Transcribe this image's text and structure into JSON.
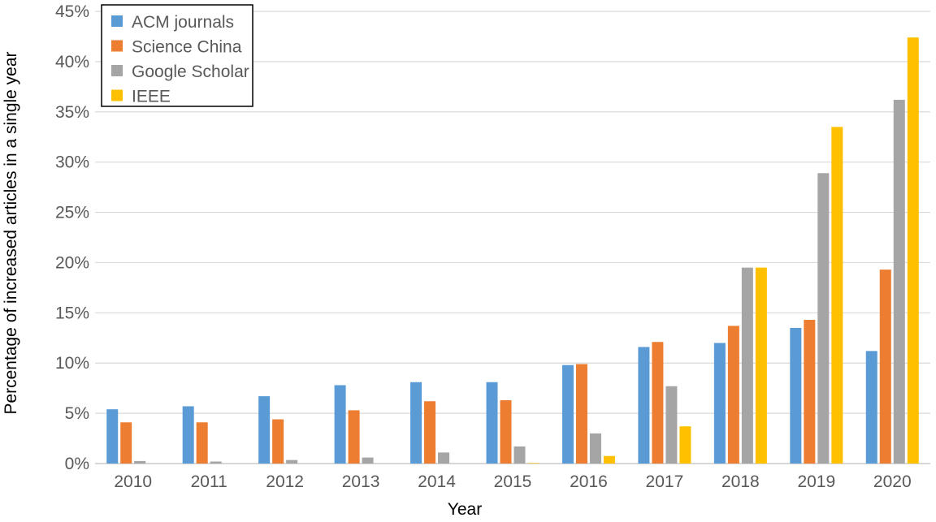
{
  "chart_data": {
    "type": "bar",
    "title": "",
    "xlabel": "Year",
    "ylabel": "Percentage of increased articles in a single year",
    "categories": [
      "2010",
      "2011",
      "2012",
      "2013",
      "2014",
      "2015",
      "2016",
      "2017",
      "2018",
      "2019",
      "2020"
    ],
    "ylim": [
      0,
      45
    ],
    "yticks": [
      0,
      5,
      10,
      15,
      20,
      25,
      30,
      35,
      40,
      45
    ],
    "ytick_labels": [
      "0%",
      "5%",
      "10%",
      "15%",
      "20%",
      "25%",
      "30%",
      "35%",
      "40%",
      "45%"
    ],
    "grid": true,
    "legend_position": "top-left",
    "series": [
      {
        "name": "ACM journals",
        "color": "#5b9bd5",
        "values": [
          5.4,
          5.7,
          6.7,
          7.8,
          8.1,
          8.1,
          9.8,
          11.6,
          12.0,
          13.5,
          11.2
        ]
      },
      {
        "name": "Science China",
        "color": "#ed7d31",
        "values": [
          4.1,
          4.1,
          4.4,
          5.3,
          6.2,
          6.3,
          9.9,
          12.1,
          13.7,
          14.3,
          19.3
        ]
      },
      {
        "name": "Google Scholar",
        "color": "#a5a5a5",
        "values": [
          0.25,
          0.2,
          0.35,
          0.6,
          1.1,
          1.7,
          3.0,
          7.7,
          19.5,
          28.9,
          36.2
        ]
      },
      {
        "name": "IEEE",
        "color": "#ffc000",
        "values": [
          0,
          0,
          0,
          0,
          0,
          0.05,
          0.75,
          3.7,
          19.5,
          33.5,
          42.4
        ]
      }
    ]
  }
}
